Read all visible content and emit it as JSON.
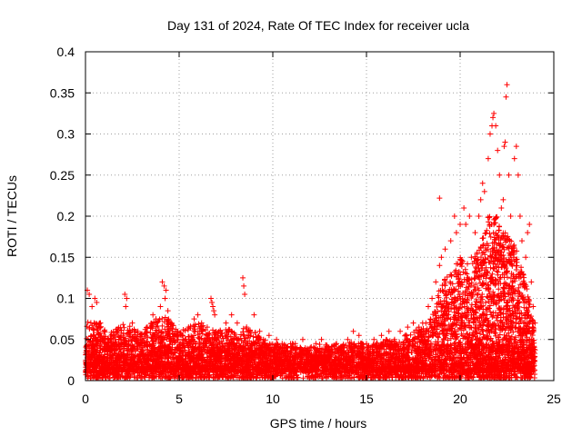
{
  "chart_data": {
    "type": "scatter",
    "title": "Day 131 of 2024, Rate Of TEC Index for receiver ucla",
    "xlabel": "GPS time / hours",
    "ylabel": "ROTI / TECUs",
    "xlim": [
      0,
      25
    ],
    "ylim": [
      0,
      0.4
    ],
    "xticks": [
      0,
      5,
      10,
      15,
      20,
      25
    ],
    "xtick_labels": [
      "0",
      "5",
      "10",
      "15",
      "20",
      "25"
    ],
    "yticks": [
      0,
      0.05,
      0.1,
      0.15,
      0.2,
      0.25,
      0.3,
      0.35,
      0.4
    ],
    "ytick_labels": [
      "0",
      "0.05",
      "0.1",
      "0.15",
      "0.2",
      "0.25",
      "0.3",
      "0.35",
      "0.4"
    ],
    "grid": true,
    "marker": "plus",
    "color": "#ff0000",
    "series": [
      {
        "name": "ROTI",
        "points": [
          [
            0.1,
            0.11
          ],
          [
            0.2,
            0.105
          ],
          [
            0.35,
            0.09
          ],
          [
            0.5,
            0.1
          ],
          [
            0.6,
            0.095
          ],
          [
            0.8,
            0.07
          ],
          [
            1.0,
            0.06
          ],
          [
            1.2,
            0.05
          ],
          [
            1.5,
            0.055
          ],
          [
            1.8,
            0.045
          ],
          [
            2.1,
            0.105
          ],
          [
            2.2,
            0.1
          ],
          [
            2.15,
            0.09
          ],
          [
            2.5,
            0.07
          ],
          [
            2.8,
            0.06
          ],
          [
            3.0,
            0.05
          ],
          [
            3.3,
            0.065
          ],
          [
            3.6,
            0.08
          ],
          [
            3.8,
            0.07
          ],
          [
            4.0,
            0.09
          ],
          [
            4.1,
            0.12
          ],
          [
            4.2,
            0.115
          ],
          [
            4.3,
            0.11
          ],
          [
            4.25,
            0.1
          ],
          [
            4.4,
            0.085
          ],
          [
            4.6,
            0.07
          ],
          [
            4.9,
            0.06
          ],
          [
            5.2,
            0.05
          ],
          [
            5.5,
            0.065
          ],
          [
            5.8,
            0.075
          ],
          [
            6.0,
            0.08
          ],
          [
            6.2,
            0.07
          ],
          [
            6.5,
            0.065
          ],
          [
            6.7,
            0.1
          ],
          [
            6.75,
            0.095
          ],
          [
            6.8,
            0.09
          ],
          [
            6.85,
            0.085
          ],
          [
            6.9,
            0.08
          ],
          [
            7.2,
            0.06
          ],
          [
            7.5,
            0.07
          ],
          [
            7.8,
            0.08
          ],
          [
            8.1,
            0.07
          ],
          [
            8.4,
            0.125
          ],
          [
            8.45,
            0.115
          ],
          [
            8.5,
            0.105
          ],
          [
            8.6,
            0.065
          ],
          [
            9.0,
            0.08
          ],
          [
            9.3,
            0.06
          ],
          [
            9.5,
            0.05
          ],
          [
            9.8,
            0.055
          ],
          [
            10.2,
            0.05
          ],
          [
            10.5,
            0.045
          ],
          [
            10.8,
            0.04
          ],
          [
            11.2,
            0.045
          ],
          [
            11.6,
            0.05
          ],
          [
            12.0,
            0.04
          ],
          [
            12.3,
            0.045
          ],
          [
            12.6,
            0.05
          ],
          [
            13.0,
            0.04
          ],
          [
            13.4,
            0.045
          ],
          [
            13.8,
            0.04
          ],
          [
            14.0,
            0.05
          ],
          [
            14.3,
            0.06
          ],
          [
            14.6,
            0.055
          ],
          [
            15.0,
            0.045
          ],
          [
            15.4,
            0.05
          ],
          [
            15.8,
            0.055
          ],
          [
            16.2,
            0.06
          ],
          [
            16.5,
            0.05
          ],
          [
            16.8,
            0.06
          ],
          [
            17.2,
            0.065
          ],
          [
            17.5,
            0.07
          ],
          [
            17.8,
            0.065
          ],
          [
            18.0,
            0.07
          ],
          [
            18.3,
            0.09
          ],
          [
            18.5,
            0.1
          ],
          [
            18.7,
            0.12
          ],
          [
            18.9,
            0.14
          ],
          [
            19.0,
            0.15
          ],
          [
            19.2,
            0.16
          ],
          [
            18.9,
            0.222
          ],
          [
            19.5,
            0.17
          ],
          [
            19.7,
            0.2
          ],
          [
            19.8,
            0.18
          ],
          [
            20.0,
            0.19
          ],
          [
            20.2,
            0.21
          ],
          [
            20.3,
            0.19
          ],
          [
            20.5,
            0.2
          ],
          [
            20.6,
            0.15
          ],
          [
            20.8,
            0.18
          ],
          [
            21.0,
            0.2
          ],
          [
            21.1,
            0.22
          ],
          [
            21.2,
            0.24
          ],
          [
            21.3,
            0.23
          ],
          [
            21.5,
            0.27
          ],
          [
            21.6,
            0.3
          ],
          [
            21.7,
            0.31
          ],
          [
            21.75,
            0.32
          ],
          [
            21.8,
            0.325
          ],
          [
            21.9,
            0.31
          ],
          [
            22.0,
            0.28
          ],
          [
            22.1,
            0.25
          ],
          [
            22.2,
            0.21
          ],
          [
            22.3,
            0.22
          ],
          [
            22.35,
            0.285
          ],
          [
            22.4,
            0.29
          ],
          [
            22.45,
            0.345
          ],
          [
            22.5,
            0.36
          ],
          [
            22.6,
            0.25
          ],
          [
            22.7,
            0.2
          ],
          [
            22.9,
            0.27
          ],
          [
            23.0,
            0.285
          ],
          [
            23.1,
            0.25
          ],
          [
            23.2,
            0.2
          ],
          [
            23.3,
            0.17
          ],
          [
            23.5,
            0.15
          ],
          [
            23.6,
            0.18
          ],
          [
            23.7,
            0.19
          ],
          [
            23.8,
            0.12
          ],
          [
            23.9,
            0.09
          ],
          [
            24.0,
            0.07
          ]
        ],
        "baseline": {
          "x_min": 0,
          "x_max": 24,
          "y_min": 0.003,
          "y_max": 0.045
        },
        "envelope": [
          [
            0,
            0.07
          ],
          [
            0.5,
            0.075
          ],
          [
            1.0,
            0.065
          ],
          [
            1.5,
            0.06
          ],
          [
            2.0,
            0.07
          ],
          [
            2.5,
            0.065
          ],
          [
            3.0,
            0.06
          ],
          [
            3.5,
            0.07
          ],
          [
            4.0,
            0.08
          ],
          [
            4.5,
            0.075
          ],
          [
            5.0,
            0.06
          ],
          [
            5.5,
            0.065
          ],
          [
            6.0,
            0.07
          ],
          [
            6.5,
            0.065
          ],
          [
            7.0,
            0.06
          ],
          [
            7.5,
            0.065
          ],
          [
            8.0,
            0.06
          ],
          [
            8.5,
            0.065
          ],
          [
            9.0,
            0.06
          ],
          [
            9.5,
            0.05
          ],
          [
            10.0,
            0.045
          ],
          [
            10.5,
            0.04
          ],
          [
            11.0,
            0.04
          ],
          [
            11.5,
            0.042
          ],
          [
            12.0,
            0.038
          ],
          [
            12.5,
            0.04
          ],
          [
            13.0,
            0.038
          ],
          [
            13.5,
            0.04
          ],
          [
            14.0,
            0.045
          ],
          [
            14.5,
            0.05
          ],
          [
            15.0,
            0.042
          ],
          [
            15.5,
            0.045
          ],
          [
            16.0,
            0.05
          ],
          [
            16.5,
            0.05
          ],
          [
            17.0,
            0.055
          ],
          [
            17.5,
            0.06
          ],
          [
            18.0,
            0.065
          ],
          [
            18.5,
            0.08
          ],
          [
            19.0,
            0.12
          ],
          [
            19.5,
            0.13
          ],
          [
            20.0,
            0.15
          ],
          [
            20.5,
            0.14
          ],
          [
            21.0,
            0.16
          ],
          [
            21.5,
            0.2
          ],
          [
            22.0,
            0.2
          ],
          [
            22.5,
            0.18
          ],
          [
            23.0,
            0.16
          ],
          [
            23.5,
            0.12
          ],
          [
            24.0,
            0.06
          ]
        ]
      }
    ]
  }
}
